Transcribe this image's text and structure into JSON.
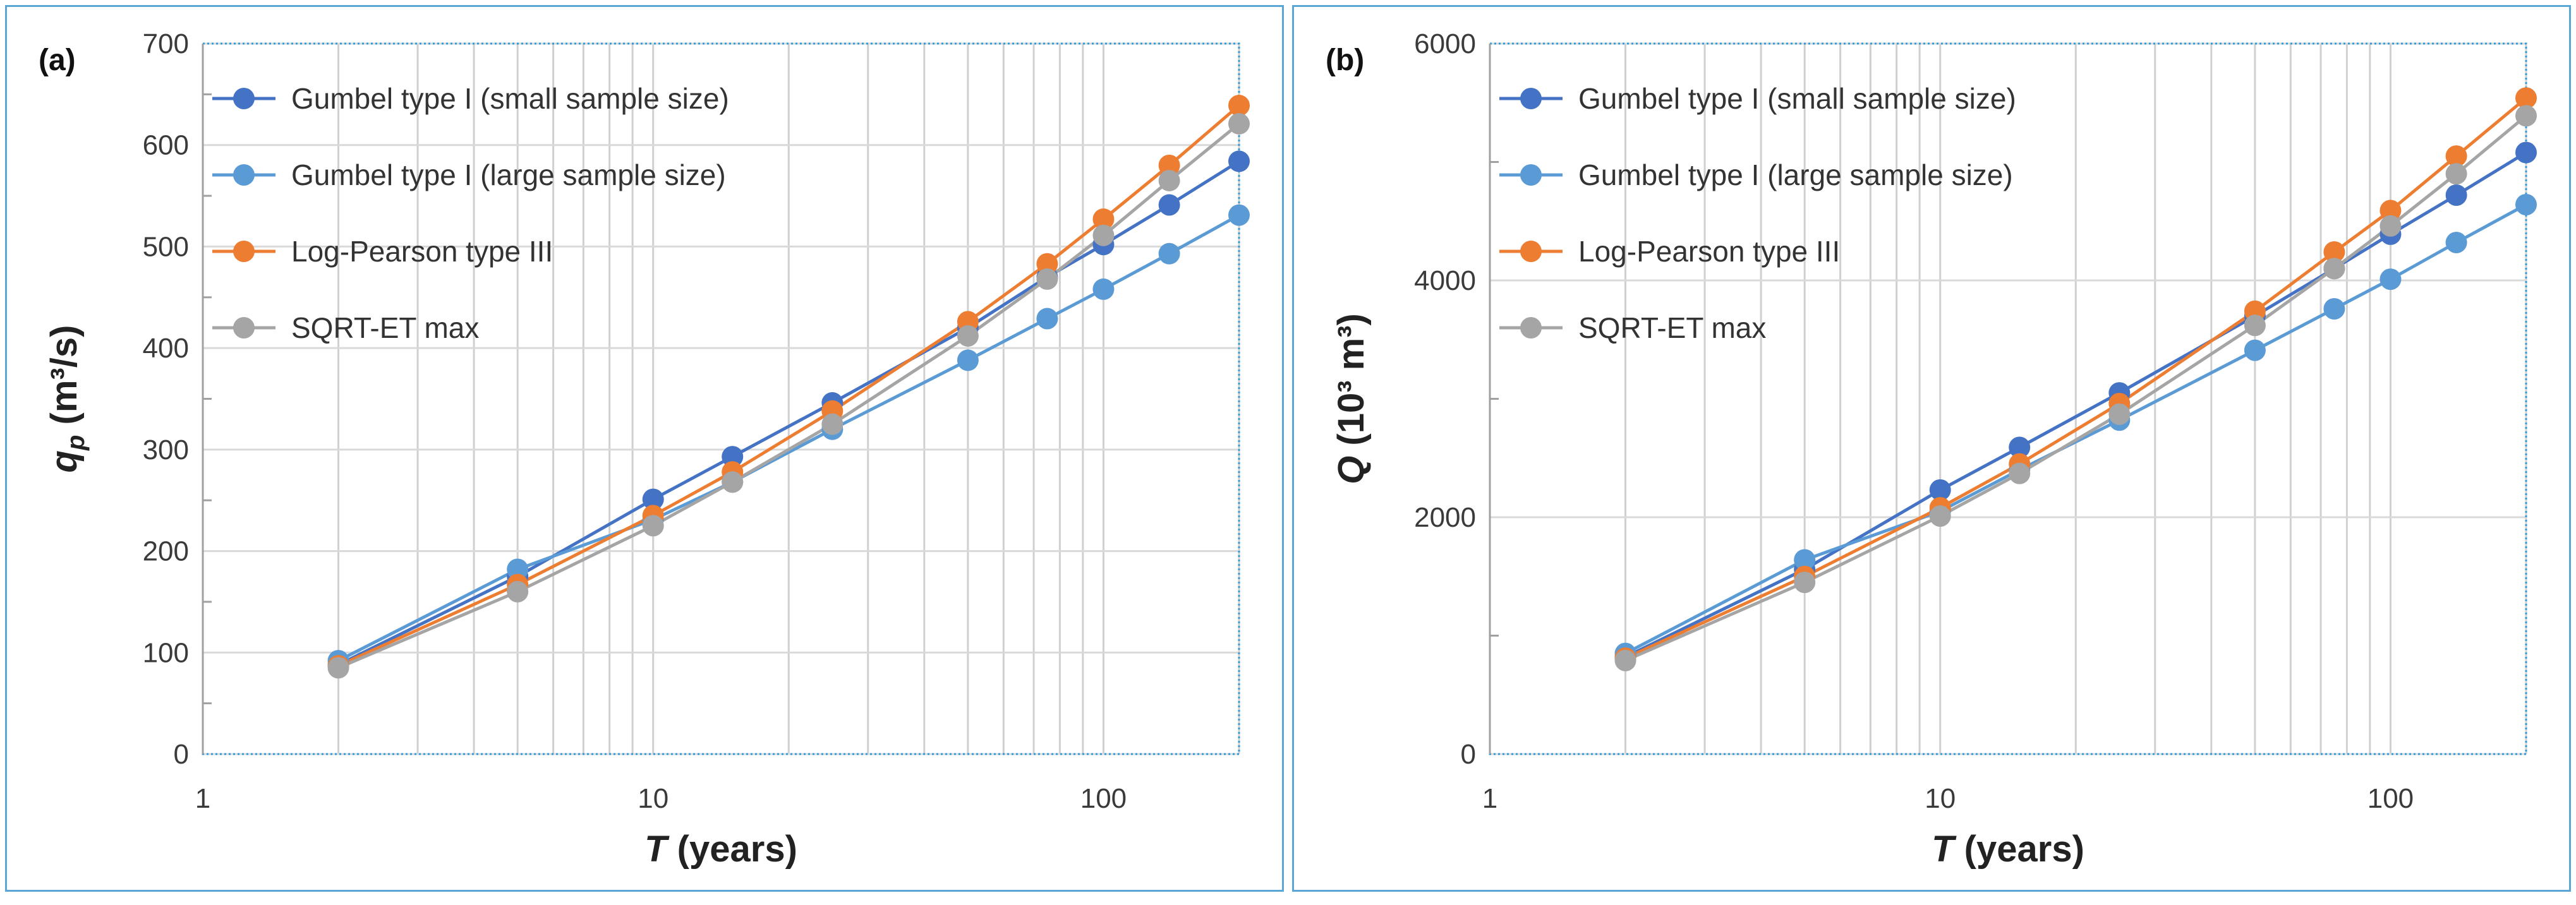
{
  "chart_data": [
    {
      "type": "line",
      "panel_label": "(a)",
      "title": "",
      "xlabel_symbol": "T",
      "xlabel_rest": " (years)",
      "ylabel_symbol": "q",
      "ylabel_subscript": "p",
      "ylabel_rest": " (m³/s)",
      "xscale": "log",
      "xlim": [
        1,
        200
      ],
      "xticks": [
        1,
        10,
        100
      ],
      "xtick_labels": [
        "1",
        "10",
        "100"
      ],
      "ylim": [
        0,
        700
      ],
      "yticks": [
        0,
        100,
        200,
        300,
        400,
        500,
        600,
        700
      ],
      "ytick_labels": [
        "0",
        "100",
        "200",
        "300",
        "400",
        "500",
        "600",
        "700"
      ],
      "grid": true,
      "legend_position": "top-left",
      "x": [
        2,
        5,
        10,
        15,
        25,
        50,
        75,
        100,
        140,
        200
      ],
      "series": [
        {
          "name": "Gumbel type I (small sample size)",
          "color": "#4472c4",
          "values": [
            88,
            175,
            251,
            293,
            346,
            420,
            470,
            502,
            541,
            584
          ]
        },
        {
          "name": "Gumbel type I (large sample size)",
          "color": "#5b9bd5",
          "values": [
            92,
            182,
            231,
            268,
            320,
            388,
            429,
            458,
            493,
            531
          ]
        },
        {
          "name": "Log-Pearson type III",
          "color": "#ed7d31",
          "values": [
            87,
            167,
            235,
            278,
            338,
            426,
            483,
            527,
            580,
            639
          ]
        },
        {
          "name": "SQRT-ET max",
          "color": "#a5a5a5",
          "values": [
            85,
            160,
            225,
            268,
            325,
            412,
            468,
            511,
            565,
            621
          ]
        }
      ]
    },
    {
      "type": "line",
      "panel_label": "(b)",
      "title": "",
      "xlabel_symbol": "T",
      "xlabel_rest": " (years)",
      "ylabel_symbol": "Q",
      "ylabel_subscript": "",
      "ylabel_rest": " (10³ m³)",
      "xscale": "log",
      "xlim": [
        1,
        200
      ],
      "xticks": [
        1,
        10,
        100
      ],
      "xtick_labels": [
        "1",
        "10",
        "100"
      ],
      "ylim": [
        0,
        6000
      ],
      "yticks": [
        0,
        2000,
        4000,
        6000
      ],
      "ytick_labels": [
        "0",
        "2000",
        "4000",
        "6000"
      ],
      "grid": true,
      "legend_position": "top-left",
      "x": [
        2,
        5,
        10,
        15,
        25,
        50,
        75,
        100,
        140,
        200
      ],
      "series": [
        {
          "name": "Gumbel type I (small sample size)",
          "color": "#4472c4",
          "values": [
            820,
            1560,
            2230,
            2590,
            3050,
            3700,
            4100,
            4390,
            4720,
            5080
          ]
        },
        {
          "name": "Gumbel type I (large sample size)",
          "color": "#5b9bd5",
          "values": [
            850,
            1640,
            2050,
            2400,
            2820,
            3410,
            3760,
            4010,
            4320,
            4640
          ]
        },
        {
          "name": "Log-Pearson type III",
          "color": "#ed7d31",
          "values": [
            810,
            1500,
            2080,
            2450,
            2960,
            3740,
            4240,
            4590,
            5050,
            5540
          ]
        },
        {
          "name": "SQRT-ET max",
          "color": "#a5a5a5",
          "values": [
            790,
            1450,
            2010,
            2370,
            2870,
            3620,
            4100,
            4460,
            4900,
            5390
          ]
        }
      ]
    }
  ]
}
